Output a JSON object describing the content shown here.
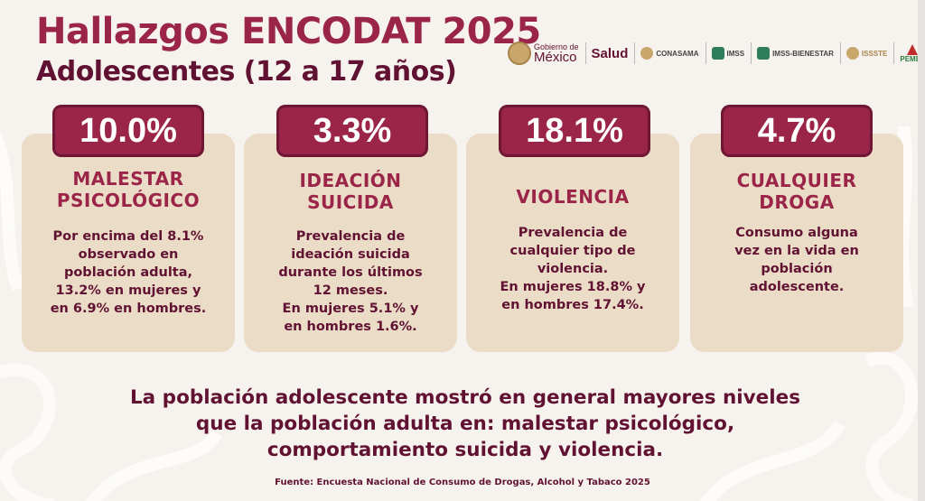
{
  "header": {
    "title": "Hallazgos ENCODAT 2025",
    "subtitle": "Adolescentes (12 a 17 años)"
  },
  "logos": {
    "gobierno_top": "Gobierno de",
    "gobierno_bottom": "México",
    "salud": "Salud",
    "conasama": "CONASAMA",
    "imss": "IMSS",
    "imss_bienestar": "IMSS-BIENESTAR",
    "issste": "ISSSTE",
    "pemex": "PEMEX"
  },
  "cards": [
    {
      "value": "10.0%",
      "title_line1": "MALESTAR",
      "title_line2": "PSICOLÓGICO",
      "desc": [
        "Por encima del 8.1%",
        "observado en",
        "población adulta,",
        "13.2% en mujeres y",
        "en 6.9% en hombres."
      ]
    },
    {
      "value": "3.3%",
      "title_line1": "IDEACIÓN",
      "title_line2": "SUICIDA",
      "desc": [
        "Prevalencia de",
        "ideación suicida",
        "durante los últimos",
        "12 meses.",
        "En mujeres 5.1% y",
        "en hombres 1.6%."
      ]
    },
    {
      "value": "18.1%",
      "title_line1": "VIOLENCIA",
      "desc": [
        "Prevalencia de",
        "cualquier tipo de",
        "violencia.",
        "En mujeres 18.8% y",
        "en hombres 17.4%."
      ]
    },
    {
      "value": "4.7%",
      "title_line1": "CUALQUIER",
      "title_line2": "DROGA",
      "desc": [
        "Consumo alguna",
        "vez en la vida en",
        "población",
        "adolescente."
      ]
    }
  ],
  "conclusion": [
    "La población adolescente mostró en general mayores niveles",
    "que la población adulta en: malestar psicológico,",
    "comportamiento suicida y violencia."
  ],
  "source": "Fuente: Encuesta Nacional de Consumo de Drogas, Alcohol y Tabaco 2025",
  "colors": {
    "primary": "#9b2548",
    "dark": "#611232",
    "card_bg": "#ebdcc7",
    "page_bg": "#f6f2ee"
  }
}
